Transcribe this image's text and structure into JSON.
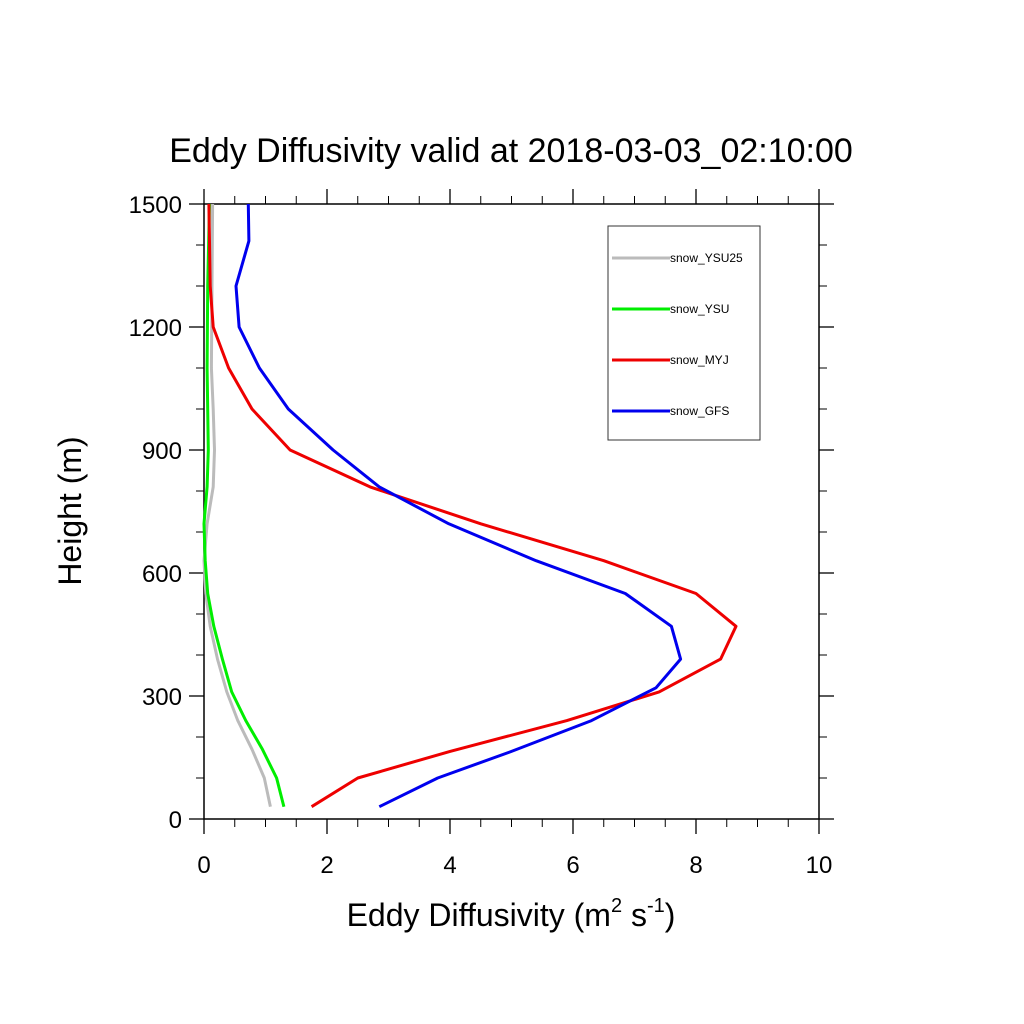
{
  "chart_data": {
    "type": "line",
    "title": "Eddy Diffusivity valid at 2018-03-03_02:10:00",
    "xlabel_main": "Eddy Diffusivity (m",
    "xlabel_sup1": "2",
    "xlabel_mid": " s",
    "xlabel_sup2": "-1",
    "xlabel_end": ")",
    "ylabel": "Height (m)",
    "xlim": [
      0,
      10
    ],
    "ylim": [
      0,
      1500
    ],
    "xticks": [
      0,
      2,
      4,
      6,
      8,
      10
    ],
    "yticks": [
      0,
      300,
      600,
      900,
      1200,
      1500
    ],
    "grid": false,
    "legend_position": "top-right",
    "series": [
      {
        "name": "snow_YSU25",
        "color": "#bbbbbb",
        "x": [
          1.08,
          0.98,
          0.78,
          0.55,
          0.37,
          0.22,
          0.1,
          0.03,
          0.0,
          0.05,
          0.15,
          0.17,
          0.15,
          0.12,
          0.13,
          0.14
        ],
        "y": [
          30,
          100,
          170,
          240,
          310,
          390,
          470,
          550,
          630,
          720,
          810,
          900,
          1000,
          1100,
          1300,
          1500
        ]
      },
      {
        "name": "snow_YSU",
        "color": "#00ee00",
        "x": [
          1.3,
          1.18,
          0.95,
          0.68,
          0.45,
          0.3,
          0.16,
          0.06,
          0.02,
          0.0,
          0.05,
          0.07,
          0.06,
          0.05,
          0.06,
          0.09
        ],
        "y": [
          30,
          100,
          170,
          240,
          310,
          390,
          470,
          550,
          630,
          720,
          810,
          900,
          1000,
          1100,
          1300,
          1500
        ]
      },
      {
        "name": "snow_MYJ",
        "color": "#ee0000",
        "x": [
          1.75,
          2.5,
          4.0,
          5.9,
          7.4,
          8.4,
          8.65,
          8.0,
          6.5,
          4.5,
          2.7,
          1.4,
          0.78,
          0.4,
          0.15,
          0.1,
          0.08
        ],
        "y": [
          30,
          100,
          165,
          240,
          310,
          390,
          470,
          550,
          630,
          720,
          810,
          900,
          1000,
          1100,
          1200,
          1300,
          1500
        ]
      },
      {
        "name": "snow_GFS",
        "color": "#0000ee",
        "x": [
          2.85,
          3.8,
          5.0,
          6.3,
          7.35,
          7.75,
          7.6,
          6.85,
          5.4,
          3.98,
          2.85,
          2.1,
          1.37,
          0.9,
          0.57,
          0.52,
          0.73,
          0.72
        ],
        "y": [
          30,
          100,
          165,
          240,
          320,
          390,
          470,
          550,
          630,
          720,
          810,
          900,
          1000,
          1100,
          1200,
          1300,
          1410,
          1500
        ]
      }
    ]
  }
}
